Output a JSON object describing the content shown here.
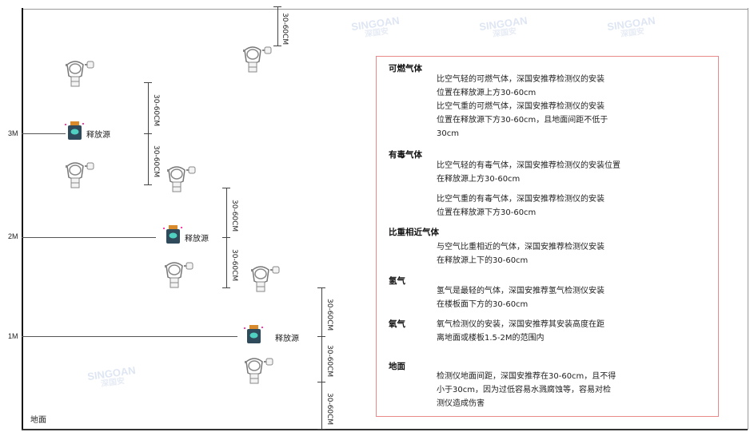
{
  "watermark": {
    "brand": "SINGOAN",
    "cn": "深国安"
  },
  "levels": [
    "3M",
    "2M",
    "1M"
  ],
  "floor_label": "地面",
  "source_label": "释放源",
  "dimension_label": "30-60CM",
  "icons": {
    "detector": "gas-detector-icon",
    "source": "leak-source-icon"
  },
  "colors": {
    "box_border": "#e88a8a",
    "source_body": "#2f4a5a",
    "source_cap": "#d98a2b",
    "source_face": "#4fd0c0"
  },
  "legend": {
    "sections": [
      {
        "title": "可燃气体",
        "paras": [
          [
            "比空气轻的可燃气体，深国安推荐检测仪的安装",
            "位置在释放源上方30-60cm"
          ],
          [
            "比空气重的可燃气体，深国安推荐检测仪的安装",
            "位置在释放源下方30-60cm，且地面间距不低于",
            "30cm"
          ]
        ]
      },
      {
        "title": "有毒气体",
        "paras": [
          [
            "比空气轻的有毒气体，深国安推荐检测仪的安装位置",
            "在释放源上方30-60cm"
          ],
          [
            "比空气重的有毒气体，深国安推荐检测仪的安装",
            "位置在释放源下方30-60cm"
          ]
        ]
      },
      {
        "title": "比重相近气体",
        "paras": [
          [
            "与空气比重相近的气体，深国安推荐检测仪安装",
            "在释放源上下的30-60cm"
          ]
        ]
      },
      {
        "title": "氢气",
        "paras": [
          [
            "氢气是最轻的气体，深国安推荐氢气检测仪安装",
            "在楼板面下方的30-60cm"
          ]
        ]
      },
      {
        "title": "氧气",
        "paras": [
          [
            "氧气检测仪的安装，深国安推荐其安装高度在距",
            "离地面或楼板1.5-2M的范围内"
          ]
        ]
      },
      {
        "title": "地面",
        "paras": [
          [
            "检测仪地面间距，深国安推荐在30-60cm，且不得",
            "小于30cm，因为过低容易水溅腐蚀等，容易对检",
            "测仪造成伤害"
          ]
        ]
      }
    ]
  }
}
